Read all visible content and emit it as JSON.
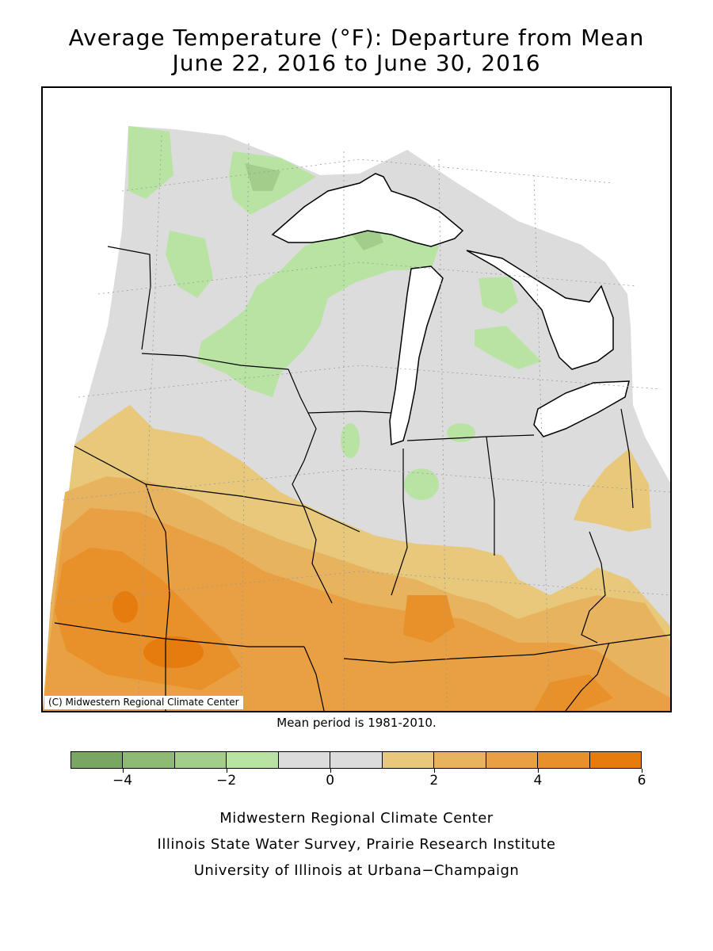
{
  "title": {
    "line1": "Average Temperature (°F): Departure from Mean",
    "line2": "June 22, 2016 to June 30, 2016"
  },
  "map": {
    "copyright": "(C) Midwestern Regional Climate Center",
    "land_color": "#dcdcdc",
    "water_color": "#ffffff",
    "outline_color": "#000000"
  },
  "mean_period": "Mean period is 1981-2010.",
  "legend": {
    "bins": [
      {
        "from": -5,
        "to": -4,
        "color": "#7aa664"
      },
      {
        "from": -4,
        "to": -3,
        "color": "#8fba75"
      },
      {
        "from": -3,
        "to": -2,
        "color": "#a3cd8a"
      },
      {
        "from": -2,
        "to": -1,
        "color": "#b9e3a3"
      },
      {
        "from": -1,
        "to": 0,
        "color": "#dcdcdc"
      },
      {
        "from": 0,
        "to": 1,
        "color": "#dcdcdc"
      },
      {
        "from": 1,
        "to": 2,
        "color": "#e8c87a"
      },
      {
        "from": 2,
        "to": 3,
        "color": "#e8b35e"
      },
      {
        "from": 3,
        "to": 4,
        "color": "#e8a042"
      },
      {
        "from": 4,
        "to": 5,
        "color": "#e8902a"
      },
      {
        "from": 5,
        "to": 6,
        "color": "#e67b0e"
      }
    ],
    "tick_labels": [
      "−4",
      "−2",
      "0",
      "2",
      "4",
      "6"
    ],
    "tick_values": [
      -4,
      -2,
      0,
      2,
      4,
      6
    ]
  },
  "credits": {
    "line1": "Midwestern Regional Climate Center",
    "line2": "Illinois State Water Survey, Prairie Research Institute",
    "line3": "University of Illinois at Urbana−Champaign"
  }
}
